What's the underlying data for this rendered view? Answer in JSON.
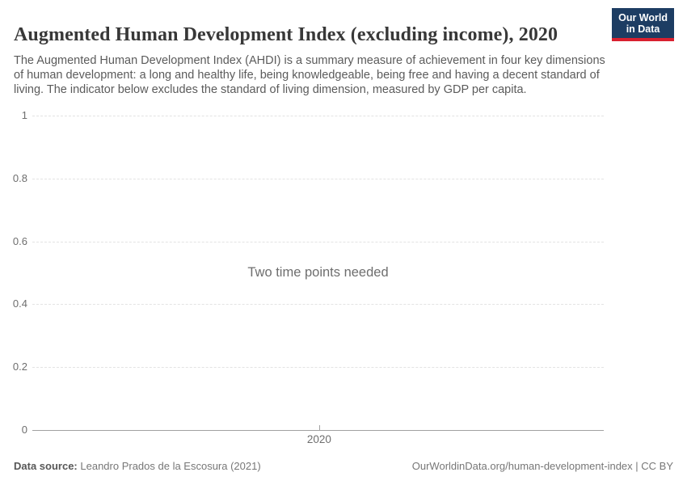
{
  "header": {
    "title": "Augmented Human Development Index (excluding income), 2020",
    "subtitle": "The Augmented Human Development Index (AHDI) is a summary measure of achievement in four key dimensions of human development: a long and healthy life, being knowledgeable, being free and having a decent standard of living. The indicator below excludes the standard of living dimension, measured by GDP per capita.",
    "logo": {
      "line1": "Our World",
      "line2": "in Data"
    }
  },
  "chart_data": {
    "type": "line",
    "title": "Augmented Human Development Index (excluding income), 2020",
    "message": "Two time points needed",
    "series": [],
    "x": [
      2020
    ],
    "xticks": [
      "2020"
    ],
    "yticks": [
      {
        "value": 0,
        "label": "0"
      },
      {
        "value": 0.2,
        "label": "0.2"
      },
      {
        "value": 0.4,
        "label": "0.4"
      },
      {
        "value": 0.6,
        "label": "0.6"
      },
      {
        "value": 0.8,
        "label": "0.8"
      },
      {
        "value": 1,
        "label": "1"
      }
    ],
    "ylim": [
      0,
      1
    ],
    "grid": "horizontal-dashed",
    "legend": "none"
  },
  "footer": {
    "source_label": "Data source:",
    "source_value": "Leandro Prados de la Escosura (2021)",
    "credit": "OurWorldinData.org/human-development-index | CC BY"
  },
  "colors": {
    "logo_bg": "#1d3d63",
    "logo_accent": "#d9202f",
    "grid": "#e3e3e3",
    "axis": "#a1a1a1",
    "muted_text": "#6e6e6e"
  }
}
